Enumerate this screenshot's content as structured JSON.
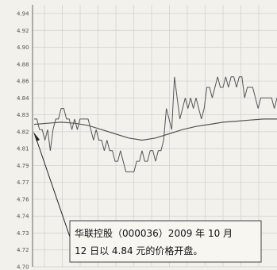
{
  "chart_data": {
    "type": "line",
    "title": "",
    "xlabel": "",
    "ylabel": "",
    "ylim": [
      4.7,
      4.94
    ],
    "y_ticks": [
      "4.94",
      "4.92",
      "4.90",
      "4.88",
      "4.86",
      "4.84",
      "4.83",
      "4.82",
      "4.81",
      "4.79",
      "4.77",
      "4.76",
      "4.74",
      "4.73",
      "4.72",
      "4.70"
    ],
    "grid": true,
    "legend": "none",
    "series": [
      {
        "color": "#555555",
        "x": [
          0,
          1,
          2,
          3,
          4,
          5,
          6,
          7,
          8,
          9,
          10,
          11,
          12,
          13,
          14,
          15,
          16,
          17,
          18,
          19,
          20,
          21,
          22,
          23,
          24,
          25,
          26,
          27,
          28,
          29,
          30,
          31,
          32,
          33,
          34,
          35,
          36,
          37,
          38,
          39,
          40,
          41,
          42,
          43,
          44,
          45,
          46,
          47,
          48,
          49,
          50,
          51,
          52,
          53,
          54,
          55,
          56,
          57,
          58,
          59,
          60,
          61,
          62,
          63,
          64,
          65,
          66,
          67,
          68,
          69,
          70,
          71,
          72,
          73,
          74,
          75,
          76,
          77,
          78,
          79,
          80,
          81,
          82,
          83,
          84,
          85,
          86,
          87,
          88,
          89,
          90
        ],
        "values": [
          4.84,
          4.84,
          4.83,
          4.83,
          4.82,
          4.83,
          4.81,
          4.83,
          4.84,
          4.84,
          4.85,
          4.85,
          4.84,
          4.84,
          4.83,
          4.84,
          4.83,
          4.84,
          4.84,
          4.84,
          4.84,
          4.83,
          4.82,
          4.83,
          4.82,
          4.82,
          4.81,
          4.82,
          4.81,
          4.81,
          4.8,
          4.8,
          4.81,
          4.8,
          4.79,
          4.79,
          4.79,
          4.79,
          4.8,
          4.8,
          4.81,
          4.8,
          4.8,
          4.81,
          4.81,
          4.8,
          4.81,
          4.81,
          4.82,
          4.85,
          4.84,
          4.83,
          4.88,
          4.86,
          4.84,
          4.85,
          4.86,
          4.85,
          4.86,
          4.85,
          4.86,
          4.85,
          4.84,
          4.85,
          4.87,
          4.87,
          4.86,
          4.87,
          4.88,
          4.87,
          4.87,
          4.88,
          4.87,
          4.88,
          4.88,
          4.87,
          4.88,
          4.88,
          4.86,
          4.87,
          4.87,
          4.87,
          4.86,
          4.85,
          4.86,
          4.86,
          4.86,
          4.86,
          4.86,
          4.85,
          4.86
        ]
      },
      {
        "color": "#555555",
        "x": [
          0,
          5,
          10,
          15,
          20,
          25,
          30,
          35,
          40,
          45,
          50,
          55,
          60,
          65,
          70,
          75,
          80,
          85,
          90
        ],
        "values": [
          4.835,
          4.836,
          4.837,
          4.836,
          4.834,
          4.83,
          4.826,
          4.822,
          4.82,
          4.822,
          4.826,
          4.83,
          4.833,
          4.835,
          4.837,
          4.838,
          4.839,
          4.84,
          4.84
        ]
      }
    ],
    "annotation": {
      "text_line1": "华联控股（000036）2009 年 10 月",
      "text_line2": "12 日以 4.84 元的价格开盘。"
    }
  }
}
